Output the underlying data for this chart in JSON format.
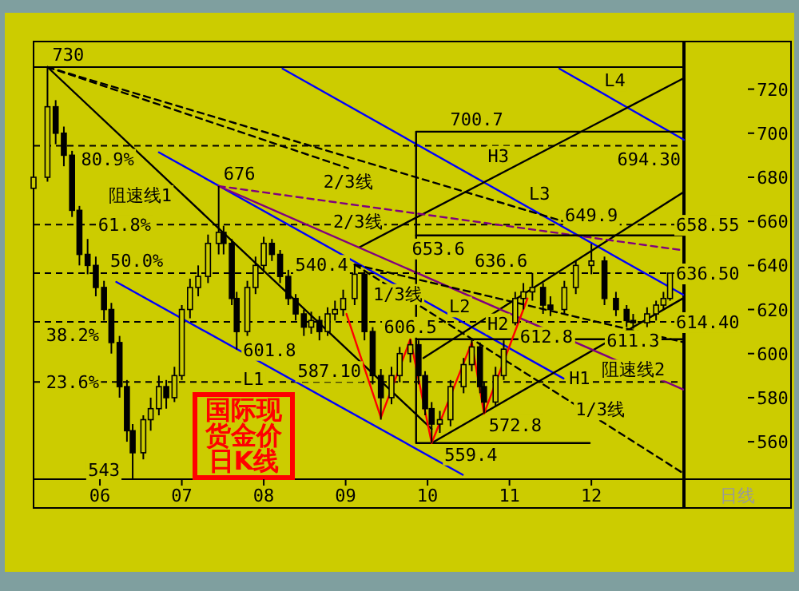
{
  "chart_data": {
    "type": "candlestick",
    "color": "#000000",
    "xlabel": "日线",
    "xlim": [
      5.19,
      13.13
    ],
    "ylim": [
      543,
      730
    ],
    "xticks": [
      {
        "value": 6,
        "label": "06"
      },
      {
        "value": 7,
        "label": "07"
      },
      {
        "value": 8,
        "label": "08"
      },
      {
        "value": 9,
        "label": "09"
      },
      {
        "value": 10,
        "label": "10"
      },
      {
        "value": 11,
        "label": "11"
      },
      {
        "value": 12,
        "label": "12"
      }
    ],
    "yticks": [
      560,
      580,
      600,
      620,
      640,
      660,
      680,
      700,
      720
    ],
    "x": [
      5.19,
      5.36,
      5.46,
      5.56,
      5.66,
      5.75,
      5.85,
      5.95,
      6.05,
      6.14,
      6.24,
      6.33,
      6.4,
      6.53,
      6.62,
      6.72,
      6.81,
      6.91,
      7.0,
      7.1,
      7.2,
      7.32,
      7.45,
      7.51,
      7.61,
      7.67,
      7.8,
      7.9,
      8.0,
      8.1,
      8.2,
      8.3,
      8.39,
      8.49,
      8.58,
      8.68,
      8.78,
      8.87,
      8.97,
      9.11,
      9.23,
      9.33,
      9.43,
      9.56,
      9.66,
      9.79,
      9.89,
      9.97,
      10.05,
      10.15,
      10.28,
      10.44,
      10.54,
      10.64,
      10.69,
      10.83,
      10.93,
      11.07,
      11.17,
      11.28,
      11.41,
      11.5,
      11.67,
      11.81,
      12.0,
      12.16,
      12.3,
      12.43,
      12.51,
      12.68,
      12.79,
      12.88,
      12.96
    ],
    "ohlc": [
      [
        675,
        688,
        670,
        680
      ],
      [
        680,
        730,
        678,
        712
      ],
      [
        712,
        715,
        695,
        700
      ],
      [
        700,
        703,
        685,
        690
      ],
      [
        690,
        692,
        662,
        665
      ],
      [
        665,
        667,
        640,
        645
      ],
      [
        645,
        652,
        636,
        640
      ],
      [
        640,
        644,
        626,
        630
      ],
      [
        630,
        633,
        615,
        620
      ],
      [
        620,
        623,
        600,
        605
      ],
      [
        605,
        608,
        580,
        585
      ],
      [
        585,
        588,
        560,
        565
      ],
      [
        565,
        568,
        543,
        555
      ],
      [
        555,
        572,
        552,
        570
      ],
      [
        570,
        580,
        565,
        575
      ],
      [
        575,
        590,
        572,
        585
      ],
      [
        585,
        588,
        575,
        580
      ],
      [
        580,
        594,
        578,
        590
      ],
      [
        590,
        622,
        588,
        620
      ],
      [
        620,
        634,
        616,
        630
      ],
      [
        630,
        640,
        626,
        635
      ],
      [
        635,
        654,
        632,
        650
      ],
      [
        650,
        676,
        645,
        655
      ],
      [
        655,
        658,
        645,
        650
      ],
      [
        650,
        652,
        622,
        625
      ],
      [
        625,
        628,
        601.8,
        610
      ],
      [
        610,
        633,
        608,
        630
      ],
      [
        630,
        644,
        627,
        640
      ],
      [
        640,
        653,
        637,
        650
      ],
      [
        650,
        652,
        642,
        645
      ],
      [
        645,
        647,
        632,
        635
      ],
      [
        635,
        638,
        622,
        625
      ],
      [
        625,
        627,
        615,
        618
      ],
      [
        618,
        620,
        608,
        612
      ],
      [
        612,
        619,
        609,
        615
      ],
      [
        615,
        617,
        606,
        610
      ],
      [
        610,
        621,
        608,
        618
      ],
      [
        618,
        624,
        615,
        620
      ],
      [
        620,
        629,
        617,
        625
      ],
      [
        625,
        640.4,
        622,
        636
      ],
      [
        636,
        638,
        606,
        610
      ],
      [
        610,
        612,
        586,
        590
      ],
      [
        590,
        593,
        570,
        580
      ],
      [
        580,
        594,
        577,
        590
      ],
      [
        590,
        603,
        587,
        600
      ],
      [
        600,
        606.5,
        596,
        604
      ],
      [
        604,
        606,
        586,
        590
      ],
      [
        590,
        592,
        572,
        575
      ],
      [
        575,
        578,
        559.4,
        568
      ],
      [
        568,
        574,
        564,
        570
      ],
      [
        570,
        588,
        567,
        585
      ],
      [
        585,
        598,
        582,
        595
      ],
      [
        595,
        607,
        592,
        603
      ],
      [
        603,
        605,
        582,
        585
      ],
      [
        585,
        587,
        572.8,
        578
      ],
      [
        578,
        594,
        576,
        590
      ],
      [
        590,
        606,
        588,
        602
      ],
      [
        614,
        628,
        612.8,
        625
      ],
      [
        625,
        632,
        620,
        628
      ],
      [
        628,
        636.6,
        624,
        630
      ],
      [
        630,
        632,
        618,
        622
      ],
      [
        622,
        626,
        617,
        620
      ],
      [
        620,
        633,
        618,
        630
      ],
      [
        630,
        642,
        627,
        640
      ],
      [
        640,
        649.9,
        636,
        642
      ],
      [
        642,
        644,
        622,
        625
      ],
      [
        625,
        628,
        617,
        620
      ],
      [
        620,
        622,
        612,
        615
      ],
      [
        615,
        618,
        611.3,
        614
      ],
      [
        614,
        621,
        612,
        618
      ],
      [
        618,
        624,
        615,
        622
      ],
      [
        622,
        628,
        620,
        625
      ],
      [
        625,
        636.5,
        624,
        636.5
      ]
    ],
    "series": [
      {
        "type": "line",
        "color": "#0000ff",
        "x": [
          6.2,
          10.43
        ],
        "values": [
          632.5,
          545
        ]
      },
      {
        "type": "line",
        "color": "#0000ff",
        "x": [
          6.72,
          11.66
        ],
        "values": [
          691.3,
          588.7
        ]
      },
      {
        "type": "line",
        "color": "#0000ff",
        "x": [
          8.23,
          13.12
        ],
        "values": [
          729.3,
          626.7
        ]
      },
      {
        "type": "line",
        "color": "#0000ff",
        "x": [
          11.61,
          13.13
        ],
        "values": [
          729.3,
          697
        ]
      },
      {
        "type": "line",
        "color": "#000000",
        "x": [
          10.05,
          13.13
        ],
        "values": [
          559.4,
          625.3
        ]
      },
      {
        "type": "line",
        "color": "#000000",
        "x": [
          9.95,
          13.13
        ],
        "values": [
          598,
          673.4
        ]
      },
      {
        "type": "line",
        "color": "#000000",
        "x": [
          9.17,
          13.13
        ],
        "values": [
          648.3,
          725
        ]
      },
      {
        "type": "line",
        "color": "#000000",
        "x": [
          5.36,
          10.05
        ],
        "values": [
          730,
          565.8
        ]
      },
      {
        "type": "line",
        "color": "#800080",
        "x": [
          7.45,
          13.12
        ],
        "values": [
          676,
          583.7
        ]
      },
      {
        "type": "line",
        "color": "#800080",
        "line_style": "dashed",
        "x": [
          7.45,
          13.13
        ],
        "values": [
          676,
          646.8
        ]
      },
      {
        "type": "line",
        "color": "#000000",
        "line_style": "dashed",
        "x": [
          5.36,
          9.03
        ],
        "values": [
          730,
          684.1
        ]
      },
      {
        "type": "line",
        "color": "#000000",
        "line_style": "dashed",
        "x": [
          5.36,
          11.75
        ],
        "values": [
          730,
          659
        ]
      },
      {
        "type": "line",
        "color": "#000000",
        "line_style": "dashed",
        "x": [
          9.11,
          13.12
        ],
        "values": [
          640.4,
          605.2
        ]
      },
      {
        "type": "line",
        "color": "#000000",
        "line_style": "dashed",
        "x": [
          9.11,
          13.12
        ],
        "values": [
          640.4,
          545.7
        ]
      },
      {
        "type": "line",
        "color": "#000000",
        "x": [
          13.13,
          9.86,
          9.86,
          11.98
        ],
        "values": [
          700.7,
          700.7,
          559.4,
          559.4
        ]
      },
      {
        "type": "line",
        "color": "#000000",
        "x": [
          9.86,
          13.13
        ],
        "values": [
          653.6,
          653.6
        ]
      },
      {
        "type": "line",
        "color": "#000000",
        "x": [
          9.86,
          13.13
        ],
        "values": [
          606.5,
          606.5
        ]
      },
      {
        "type": "line",
        "color": "#ff0000",
        "x": [
          9.01,
          9.43,
          9.79,
          10.05,
          10.54,
          10.69,
          11.22
        ],
        "values": [
          618,
          571,
          606.5,
          559.4,
          605,
          572.8,
          625
        ]
      }
    ],
    "ref_lines": [
      {
        "axis": "y",
        "value": 694.3,
        "label": "694.30",
        "line_style": "dashed",
        "color": "#000000"
      },
      {
        "axis": "y",
        "value": 658.55,
        "label": "658.55",
        "line_style": "dashed",
        "color": "#000000"
      },
      {
        "axis": "y",
        "value": 636.5,
        "label": "636.50",
        "line_style": "dashed",
        "color": "#000000"
      },
      {
        "axis": "y",
        "value": 614.4,
        "label": "614.40",
        "line_style": "dashed",
        "color": "#000000"
      },
      {
        "axis": "y",
        "value": 587.1,
        "label": "587.10",
        "line_style": "dashed",
        "color": "#000000"
      }
    ],
    "annotations": [
      {
        "text": "730",
        "x": 5.36,
        "y": 730
      },
      {
        "text": "676",
        "x": 7.45,
        "y": 676
      },
      {
        "text": "601.8",
        "x": 7.67,
        "y": 601.8
      },
      {
        "text": "543",
        "x": 6.4,
        "y": 543
      },
      {
        "text": "540.4",
        "x": 9.11,
        "y": 640.4
      },
      {
        "text": "606.5",
        "x": 9.79,
        "y": 606.5
      },
      {
        "text": "559.4",
        "x": 10.05,
        "y": 559.4
      },
      {
        "text": "572.8",
        "x": 10.69,
        "y": 572.8
      },
      {
        "text": "612.8",
        "x": 11.07,
        "y": 612.8
      },
      {
        "text": "636.6",
        "x": 11.28,
        "y": 636.6
      },
      {
        "text": "649.9",
        "x": 12.0,
        "y": 649.9
      },
      {
        "text": "611.3",
        "x": 12.51,
        "y": 611.3
      },
      {
        "text": "700.7",
        "x": 10.6,
        "y": 700.7
      },
      {
        "text": "653.6",
        "x": 10.6,
        "y": 653.6
      },
      {
        "text": "80.9%",
        "x": 6.25,
        "y": 694.3
      },
      {
        "text": "61.8%",
        "x": 6.3,
        "y": 658.55
      },
      {
        "text": "50.0%",
        "x": 6.45,
        "y": 636.5
      },
      {
        "text": "38.2%",
        "x": 5.51,
        "y": 614.4
      },
      {
        "text": "23.6%",
        "x": 5.51,
        "y": 587.1
      },
      {
        "text": "L1",
        "x": 8.03,
        "y": 594.5
      },
      {
        "text": "L2",
        "x": 10.08,
        "y": 621.5
      },
      {
        "text": "L3",
        "x": 11.21,
        "y": 666.8
      },
      {
        "text": "L4",
        "x": 12.13,
        "y": 718.3
      },
      {
        "text": "H1",
        "x": 11.7,
        "y": 594.7
      },
      {
        "text": "H2",
        "x": 10.86,
        "y": 619.6
      },
      {
        "text": "H3",
        "x": 11.02,
        "y": 684.1
      },
      {
        "text": "阻速线1",
        "x": 6.96,
        "y": 672
      },
      {
        "text": "阻速线2",
        "x": 12.2,
        "y": 598.7
      },
      {
        "text": "2/3线",
        "x": 9.03,
        "y": 684.1
      },
      {
        "text": "2/3线",
        "x": 9.46,
        "y": 665.7
      },
      {
        "text": "1/3线",
        "x": 9.95,
        "y": 633
      },
      {
        "text": "1/3线",
        "x": 11.64,
        "y": 580.6
      },
      "国际现货金价日K线"
    ]
  }
}
